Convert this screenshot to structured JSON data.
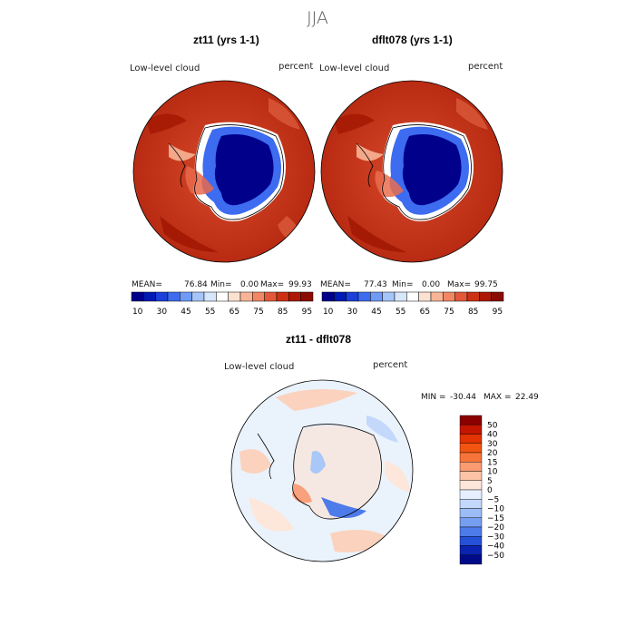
{
  "page_title": "JJA",
  "panels": [
    {
      "title": "zt11 (yrs 1-1)",
      "variable": "Low-level cloud",
      "units": "percent",
      "stats": {
        "mean_label": "MEAN=",
        "mean": "76.84",
        "min_label": "Min=",
        "min": "0.00",
        "max_label": "Max=",
        "max": "99.93"
      }
    },
    {
      "title": "dflt078 (yrs 1-1)",
      "variable": "Low-level cloud",
      "units": "percent",
      "stats": {
        "mean_label": "MEAN=",
        "mean": "77.43",
        "min_label": "Min=",
        "min": "0.00",
        "max_label": "Max=",
        "max": "99.75"
      }
    }
  ],
  "abs_colorbar": {
    "labels": [
      "10",
      "30",
      "45",
      "55",
      "65",
      "75",
      "85",
      "95"
    ],
    "colors": [
      "#00008b",
      "#001ab4",
      "#1a40d8",
      "#3d6cf0",
      "#6f9af5",
      "#a5c4f8",
      "#d6e6fb",
      "#ffffff",
      "#fde1d0",
      "#f9b496",
      "#f28765",
      "#e4583a",
      "#cc3114",
      "#ad1705",
      "#8a0c02"
    ]
  },
  "diff_panel": {
    "title": "zt11 - dflt078",
    "variable": "Low-level cloud",
    "units": "percent",
    "min_label": "MIN =",
    "min": "-30.44",
    "max_label": "MAX =",
    "max": "22.49"
  },
  "diff_colorbar": {
    "labels": [
      "50",
      "40",
      "30",
      "20",
      "15",
      "10",
      "5",
      "0",
      "−5",
      "−10",
      "−15",
      "−20",
      "−30",
      "−40",
      "−50"
    ],
    "colors": [
      "#8b0000",
      "#c41600",
      "#e23300",
      "#f25511",
      "#f7733a",
      "#fa9b72",
      "#fcc3a6",
      "#fde6da",
      "#e5efff",
      "#c3d8fa",
      "#9cbcf6",
      "#769ef1",
      "#4d7bea",
      "#2550d8",
      "#0a23b0",
      "#000a88"
    ]
  },
  "colors": {
    "ocean_abs": "#c8361c",
    "antarctica_low": "#00008b",
    "diff_base": "#eaf3fc",
    "diff_warm": "#fbd2bd",
    "diff_cool": "#a9c8f7"
  }
}
